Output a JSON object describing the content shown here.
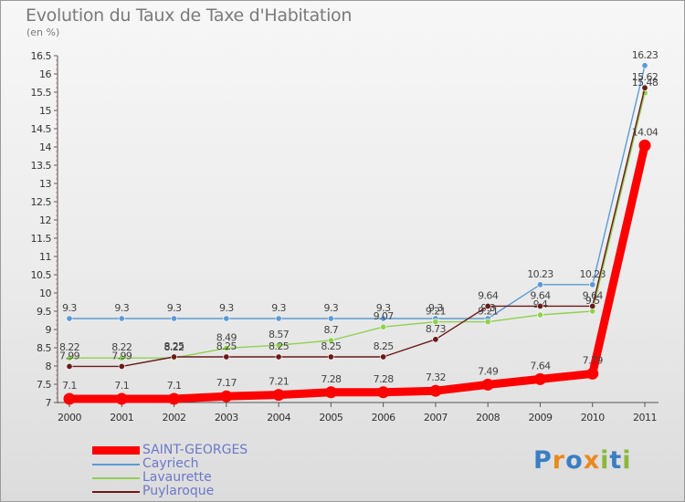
{
  "header": {
    "title": "Evolution du Taux de Taxe d'Habitation",
    "subtitle": "(en %)"
  },
  "logo": {
    "text": "Proxiti",
    "letters": [
      "P",
      "r",
      "o",
      "x",
      "i",
      "t",
      "i"
    ],
    "colors": [
      "#3a7ec4",
      "#e8891c",
      "#3a7ec4",
      "#e8891c",
      "#8ab83a",
      "#3a7ec4",
      "#8ab83a"
    ]
  },
  "chart_data": {
    "type": "line",
    "title": "Evolution du Taux de Taxe d'Habitation",
    "subtitle": "(en %)",
    "xlabel": "",
    "ylabel": "",
    "ylim": [
      7,
      16.5
    ],
    "yticks": [
      "7",
      "7.5",
      "8",
      "8.5",
      "9",
      "9.5",
      "10",
      "10.5",
      "11",
      "11.5",
      "12",
      "12.5",
      "13",
      "13.5",
      "14",
      "14.5",
      "15",
      "15.5",
      "16",
      "16.5"
    ],
    "categories": [
      "2000",
      "2001",
      "2002",
      "2003",
      "2004",
      "2005",
      "2006",
      "2007",
      "2008",
      "2009",
      "2010",
      "2011"
    ],
    "grid": false,
    "legend_position": "bottom-left",
    "series": [
      {
        "name": "SAINT-GEORGES",
        "color": "#ff0000",
        "values": [
          7.1,
          7.1,
          7.1,
          7.17,
          7.21,
          7.28,
          7.28,
          7.32,
          7.49,
          7.64,
          7.79,
          14.04
        ],
        "labels": [
          "7.1",
          "7.1",
          "7.1",
          "7.17",
          "7.21",
          "7.28",
          "7.28",
          "7.32",
          "7.49",
          "7.64",
          "7.79",
          "14.04"
        ]
      },
      {
        "name": "Cayriech",
        "color": "#5b9bd5",
        "values": [
          9.3,
          9.3,
          9.3,
          9.3,
          9.3,
          9.3,
          9.3,
          9.3,
          9.3,
          10.23,
          10.23,
          16.23
        ],
        "labels": [
          "9.3",
          "9.3",
          "9.3",
          "9.3",
          "9.3",
          "9.3",
          "9.3",
          "9.3",
          "9.3",
          "10.23",
          "10.23",
          "16.23"
        ]
      },
      {
        "name": "Lavaurette",
        "color": "#8fd14f",
        "values": [
          8.22,
          8.22,
          8.22,
          8.49,
          8.57,
          8.7,
          9.07,
          9.21,
          9.21,
          9.4,
          9.5,
          15.48
        ],
        "labels": [
          "8.22",
          "8.22",
          "8.22",
          "8.49",
          "8.57",
          "8.7",
          "9.07",
          "9.21",
          "9.21",
          "9.4",
          "9.5",
          "15.48"
        ]
      },
      {
        "name": "Puylaroque",
        "color": "#6b1a1a",
        "values": [
          7.99,
          7.99,
          8.25,
          8.25,
          8.25,
          8.25,
          8.25,
          8.73,
          9.64,
          9.64,
          9.64,
          15.62
        ],
        "labels": [
          "7.99",
          "7.99",
          "8.25",
          "8.25",
          "8.25",
          "8.25",
          "8.25",
          "8.73",
          "9.64",
          "9.64",
          "9.64",
          "15.62"
        ]
      }
    ]
  }
}
